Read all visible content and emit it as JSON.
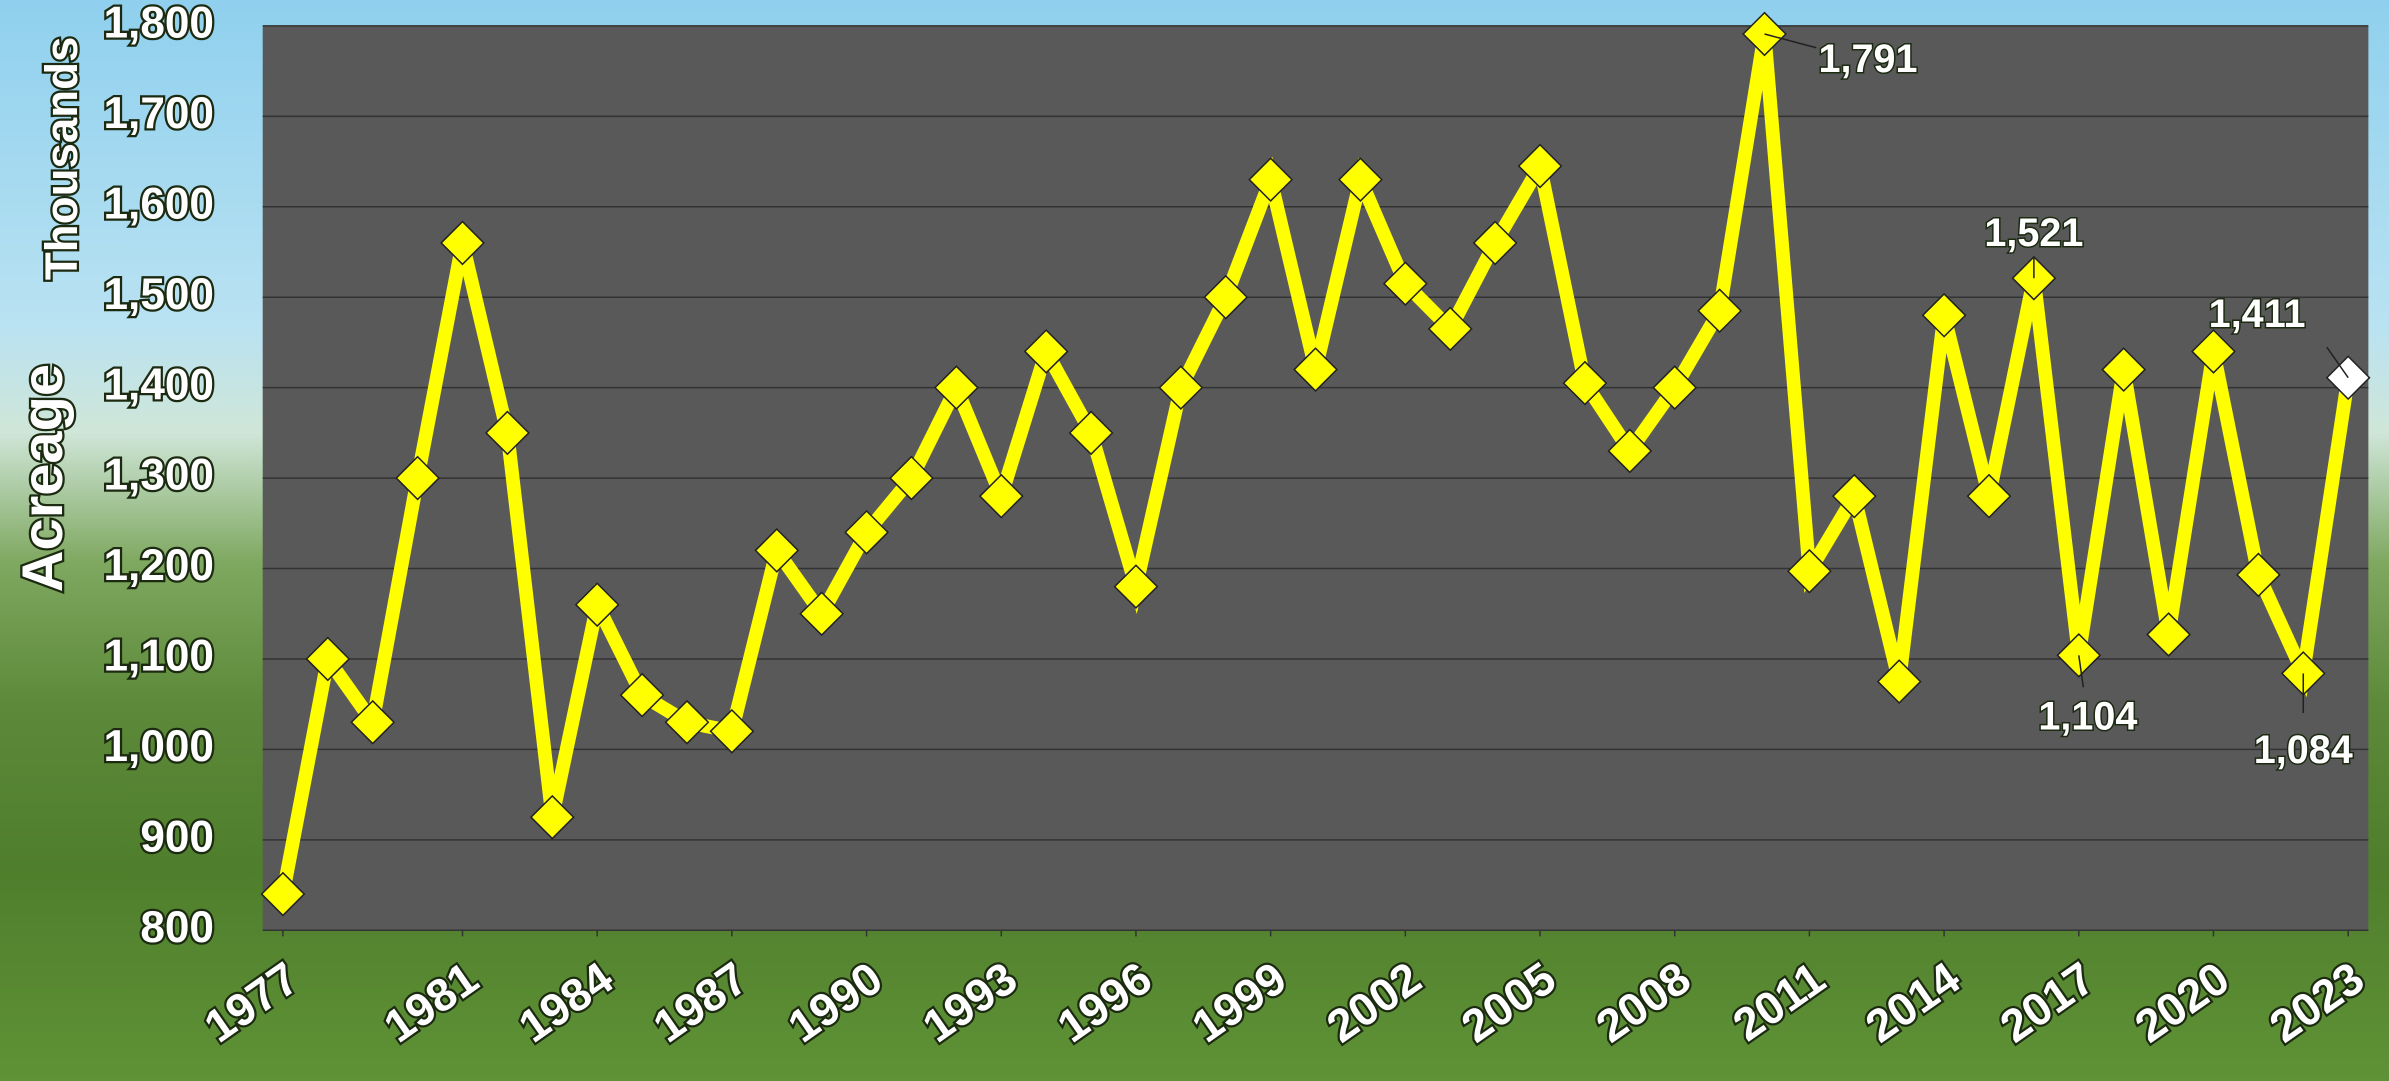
{
  "chart_data": {
    "type": "line",
    "y_label": "Acreage",
    "y_unit": "Thousands",
    "x": [
      1977,
      1978,
      1979,
      1980,
      1981,
      1982,
      1983,
      1984,
      1985,
      1986,
      1987,
      1988,
      1989,
      1990,
      1991,
      1992,
      1993,
      1994,
      1995,
      1996,
      1997,
      1998,
      1999,
      2000,
      2001,
      2002,
      2003,
      2004,
      2005,
      2006,
      2007,
      2008,
      2009,
      2010,
      2011,
      2012,
      2013,
      2014,
      2015,
      2016,
      2017,
      2018,
      2019,
      2020,
      2021,
      2022,
      2023
    ],
    "series": [
      {
        "name": "Acreage",
        "color": "#ffff00",
        "marker_color": "#ffff00",
        "last_marker_color": "#ffffff",
        "values": [
          840,
          1100,
          1030,
          1300,
          1560,
          1350,
          925,
          1160,
          1060,
          1030,
          1020,
          1220,
          1150,
          1240,
          1300,
          1400,
          1280,
          1440,
          1350,
          1180,
          1400,
          1500,
          1630,
          1420,
          1630,
          1515,
          1465,
          1560,
          1645,
          1405,
          1330,
          1400,
          1485,
          1791,
          1197,
          1280,
          1075,
          1480,
          1280,
          1521,
          1104,
          1420,
          1127,
          1440,
          1193,
          1084,
          1411
        ],
        "value_labels": [
          null,
          null,
          null,
          null,
          null,
          null,
          null,
          null,
          null,
          null,
          null,
          null,
          null,
          null,
          null,
          null,
          null,
          null,
          null,
          null,
          null,
          null,
          null,
          null,
          null,
          null,
          null,
          null,
          null,
          null,
          null,
          null,
          null,
          "1,791",
          null,
          null,
          null,
          null,
          null,
          "1,521",
          "1,104",
          null,
          null,
          null,
          null,
          "1,084",
          "1,411"
        ]
      }
    ],
    "xlim": [
      1976.55,
      2023.45
    ],
    "xticks": [
      1977,
      1981,
      1984,
      1987,
      1990,
      1993,
      1996,
      1999,
      2002,
      2005,
      2008,
      2011,
      2014,
      2017,
      2020,
      2023
    ],
    "ylim": [
      800,
      1800
    ],
    "yticks": [
      {
        "value": 800,
        "label": "800"
      },
      {
        "value": 900,
        "label": "900"
      },
      {
        "value": 1000,
        "label": "1,000"
      },
      {
        "value": 1100,
        "label": "1,100"
      },
      {
        "value": 1200,
        "label": "1,200"
      },
      {
        "value": 1300,
        "label": "1,300"
      },
      {
        "value": 1400,
        "label": "1,400"
      },
      {
        "value": 1500,
        "label": "1,500"
      },
      {
        "value": 1600,
        "label": "1,600"
      },
      {
        "value": 1700,
        "label": "1,700"
      },
      {
        "value": 1800,
        "label": "1,800"
      }
    ],
    "grid": true
  }
}
